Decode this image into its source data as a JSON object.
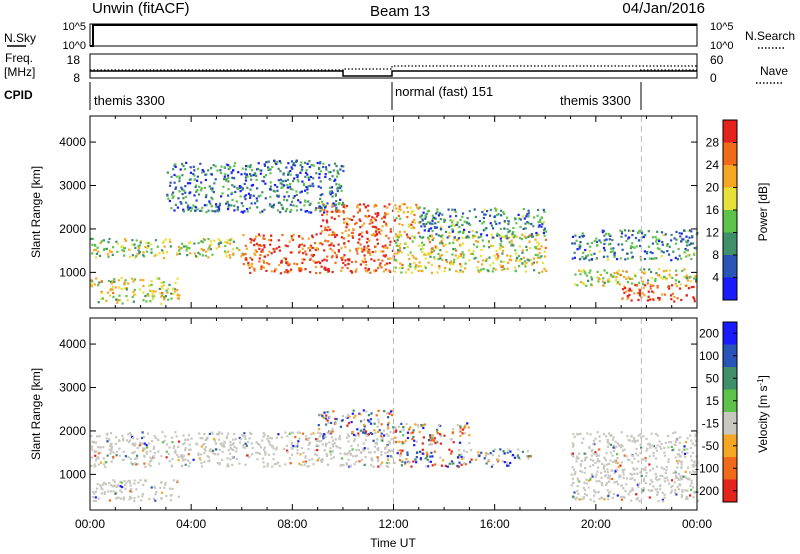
{
  "header": {
    "station": "Unwin (fitACF)",
    "beam": "Beam 13",
    "date": "04/Jan/2016"
  },
  "nsky_panel": {
    "label": "N.Sky",
    "left_ticks": [
      "10^5",
      "10^0"
    ],
    "right_label": "N.Search",
    "right_ticks": [
      "10^5",
      "10^0"
    ]
  },
  "freq_panel": {
    "label_line1": "Freq.",
    "label_line2": "[MHz]",
    "left_ticks": [
      "18",
      "8"
    ],
    "right_label": "Nave",
    "right_ticks": [
      "60",
      "0"
    ]
  },
  "cpid_panel": {
    "label": "CPID",
    "modes": [
      "themis 3300",
      "normal (fast) 151",
      "themis 3300"
    ]
  },
  "x_axis": {
    "label": "Time UT",
    "tick_labels": [
      "00:00",
      "04:00",
      "08:00",
      "12:00",
      "16:00",
      "20:00",
      "00:00"
    ]
  },
  "colors": {
    "power": [
      "#1a1aff",
      "#2a55b8",
      "#3f8f6a",
      "#5cc24a",
      "#e8e03a",
      "#f5a623",
      "#f06a1a",
      "#e4231c"
    ],
    "velocity": [
      "#e4231c",
      "#f06a1a",
      "#f5a623",
      "#c8c8c0",
      "#5cc24a",
      "#3f8f6a",
      "#2a55b8",
      "#1a1aff"
    ]
  },
  "chart_data": [
    {
      "type": "heatmap",
      "title": "",
      "xlabel": "Time UT",
      "ylabel": "Slant Range [km]",
      "xlim_hours": [
        0,
        24
      ],
      "ylim_km": [
        180,
        4600
      ],
      "y_tick_labels": [
        "1000",
        "2000",
        "3000",
        "4000"
      ],
      "colorbar": {
        "label": "Power [dB]",
        "tick_labels": [
          "4",
          "8",
          "12",
          "16",
          "20",
          "24",
          "28"
        ]
      },
      "echo_regions": [
        {
          "t_start": 0.0,
          "t_end": 3.5,
          "r_min": 300,
          "r_max": 900,
          "level": 0.55
        },
        {
          "t_start": 0.0,
          "t_end": 6.0,
          "r_min": 1350,
          "r_max": 1800,
          "level": 0.5
        },
        {
          "t_start": 6.0,
          "t_end": 12.0,
          "r_min": 1000,
          "r_max": 1900,
          "level": 0.88
        },
        {
          "t_start": 9.0,
          "t_end": 12.0,
          "r_min": 1900,
          "r_max": 2600,
          "level": 0.85
        },
        {
          "t_start": 3.0,
          "t_end": 10.0,
          "r_min": 2400,
          "r_max": 3600,
          "level": 0.25
        },
        {
          "t_start": 12.0,
          "t_end": 13.0,
          "r_min": 1800,
          "r_max": 2600,
          "level": 0.7
        },
        {
          "t_start": 12.0,
          "t_end": 18.0,
          "r_min": 1000,
          "r_max": 1900,
          "level": 0.55
        },
        {
          "t_start": 13.0,
          "t_end": 18.0,
          "r_min": 1800,
          "r_max": 2500,
          "level": 0.3
        },
        {
          "t_start": 19.0,
          "t_end": 24.0,
          "r_min": 1300,
          "r_max": 2000,
          "level": 0.3
        },
        {
          "t_start": 19.0,
          "t_end": 24.0,
          "r_min": 700,
          "r_max": 1100,
          "level": 0.55
        },
        {
          "t_start": 21.0,
          "t_end": 24.0,
          "r_min": 350,
          "r_max": 750,
          "level": 0.9
        }
      ]
    },
    {
      "type": "heatmap",
      "title": "",
      "xlabel": "Time UT",
      "ylabel": "Slant Range [km]",
      "xlim_hours": [
        0,
        24
      ],
      "ylim_km": [
        180,
        4600
      ],
      "y_tick_labels": [
        "1000",
        "2000",
        "3000",
        "4000"
      ],
      "colorbar": {
        "label": "Velocity [m s^-1]",
        "tick_labels": [
          "-200",
          "-100",
          "-50",
          "-15",
          "15",
          "50",
          "100",
          "200"
        ]
      },
      "echo_regions": [
        {
          "t_start": 0.0,
          "t_end": 3.5,
          "r_min": 400,
          "r_max": 900,
          "velocity": 0
        },
        {
          "t_start": 0.0,
          "t_end": 12.0,
          "r_min": 1200,
          "r_max": 2000,
          "velocity": 0
        },
        {
          "t_start": 9.0,
          "t_end": 12.0,
          "r_min": 1900,
          "r_max": 2500,
          "velocity": 80
        },
        {
          "t_start": 12.0,
          "t_end": 15.0,
          "r_min": 1700,
          "r_max": 2200,
          "velocity": -60
        },
        {
          "t_start": 12.0,
          "t_end": 17.5,
          "r_min": 1200,
          "r_max": 1600,
          "velocity": 40
        },
        {
          "t_start": 19.0,
          "t_end": 24.0,
          "r_min": 400,
          "r_max": 2000,
          "velocity": 0
        }
      ]
    }
  ]
}
